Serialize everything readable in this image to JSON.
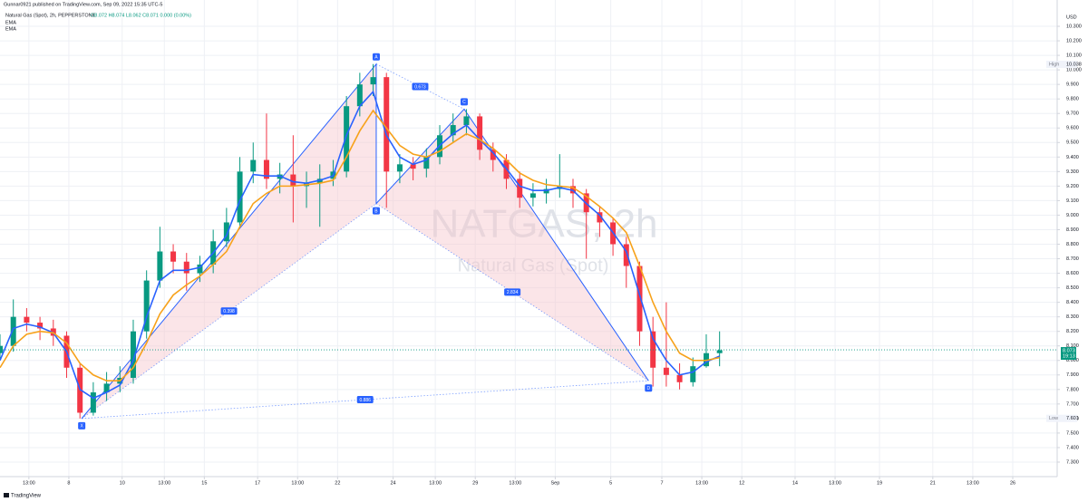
{
  "chart_data": {
    "type": "candlestick",
    "attribution": "Gunnar0921 published on TradingView.com, Sep 09, 2022 15:35 UTC-5",
    "title": "Natural Gas (Spot), 2h, PEPPERSTONE",
    "ohlc_legend": "O8.072 H8.074 L8.062 C8.071 0.000 (0.00%)",
    "watermark": "NATGAS, 2h",
    "watermark_subtitle": "Natural Gas (Spot)",
    "currency": "USD",
    "footer": "TradingView",
    "grid": true,
    "up_color": "#089981",
    "down_color": "#f23645",
    "xlim": [
      0,
      238
    ],
    "ylim": [
      7.2,
      10.4
    ],
    "x": [
      0,
      3,
      6,
      9,
      12,
      15,
      18,
      21,
      24,
      27,
      30,
      33,
      36,
      39,
      42,
      45,
      48,
      51,
      54,
      57,
      60,
      63,
      66,
      69,
      72,
      75,
      78,
      81,
      84,
      87,
      90,
      93,
      96,
      99,
      102,
      105,
      108,
      111,
      114,
      117,
      120,
      123,
      126,
      129,
      132,
      135,
      138,
      141,
      144,
      147,
      150,
      153,
      156,
      159,
      162
    ],
    "open": [
      8.05,
      8.1,
      8.3,
      8.26,
      8.22,
      8.17,
      7.95,
      7.64,
      7.78,
      7.84,
      7.88,
      8.2,
      8.55,
      8.75,
      8.68,
      8.6,
      8.66,
      8.82,
      8.95,
      9.3,
      9.38,
      9.25,
      9.28,
      9.2,
      9.22,
      9.25,
      9.3,
      9.75,
      9.9,
      9.95,
      9.3,
      9.35,
      9.32,
      9.4,
      9.55,
      9.62,
      9.68,
      9.45,
      9.38,
      9.25,
      9.12,
      9.15,
      9.18,
      9.2,
      9.15,
      9.02,
      8.95,
      8.8,
      8.65,
      8.2,
      7.95,
      7.9,
      7.85,
      7.96,
      8.05
    ],
    "high": [
      8.18,
      8.42,
      8.36,
      8.3,
      8.28,
      8.2,
      7.98,
      7.85,
      7.92,
      7.96,
      8.28,
      8.62,
      8.92,
      8.8,
      8.74,
      8.72,
      8.9,
      9.05,
      9.4,
      9.5,
      9.7,
      9.36,
      9.55,
      9.3,
      9.35,
      9.38,
      9.82,
      9.98,
      10.04,
      9.98,
      9.42,
      9.4,
      9.46,
      9.62,
      9.7,
      9.73,
      9.7,
      9.5,
      9.42,
      9.3,
      9.22,
      9.25,
      9.42,
      9.25,
      9.18,
      9.06,
      8.98,
      8.85,
      8.68,
      8.3,
      8.4,
      7.98,
      8.02,
      8.18,
      8.2
    ],
    "low": [
      8.0,
      8.06,
      8.2,
      8.14,
      8.1,
      7.88,
      7.6,
      7.62,
      7.72,
      7.78,
      7.84,
      8.15,
      8.5,
      8.6,
      8.48,
      8.54,
      8.6,
      8.78,
      8.92,
      9.22,
      9.18,
      9.15,
      8.95,
      9.05,
      8.92,
      9.2,
      9.26,
      9.68,
      9.82,
      9.05,
      9.22,
      9.24,
      9.26,
      9.35,
      9.5,
      9.55,
      9.38,
      9.3,
      9.18,
      9.05,
      9.06,
      9.08,
      9.12,
      9.05,
      8.7,
      8.85,
      8.72,
      8.5,
      8.1,
      7.82,
      7.82,
      7.8,
      7.82,
      7.95,
      7.96
    ],
    "close": [
      8.1,
      8.3,
      8.26,
      8.22,
      8.17,
      7.95,
      7.64,
      7.78,
      7.84,
      7.88,
      8.2,
      8.55,
      8.75,
      8.68,
      8.6,
      8.66,
      8.82,
      8.95,
      9.3,
      9.38,
      9.25,
      9.28,
      9.2,
      9.22,
      9.25,
      9.3,
      9.75,
      9.9,
      9.95,
      9.3,
      9.35,
      9.32,
      9.4,
      9.55,
      9.62,
      9.68,
      9.45,
      9.38,
      9.25,
      9.12,
      9.15,
      9.18,
      9.2,
      9.15,
      9.02,
      8.95,
      8.8,
      8.65,
      8.2,
      7.95,
      7.9,
      7.85,
      7.96,
      8.05,
      8.07
    ],
    "series": [
      {
        "name": "EMA",
        "color": "#2962ff",
        "values": [
          8.0,
          8.22,
          8.25,
          8.23,
          8.19,
          8.06,
          7.8,
          7.74,
          7.78,
          7.83,
          8.0,
          8.3,
          8.55,
          8.62,
          8.62,
          8.64,
          8.74,
          8.86,
          9.1,
          9.28,
          9.27,
          9.27,
          9.23,
          9.22,
          9.24,
          9.27,
          9.55,
          9.75,
          9.85,
          9.55,
          9.4,
          9.35,
          9.38,
          9.48,
          9.56,
          9.62,
          9.52,
          9.43,
          9.32,
          9.2,
          9.17,
          9.17,
          9.19,
          9.17,
          9.08,
          9.0,
          8.88,
          8.75,
          8.45,
          8.15,
          8.0,
          7.9,
          7.92,
          7.99,
          8.03
        ]
      },
      {
        "name": "EMA",
        "color": "#f7a21b",
        "values": [
          7.95,
          8.1,
          8.18,
          8.2,
          8.19,
          8.12,
          7.98,
          7.9,
          7.86,
          7.86,
          7.95,
          8.12,
          8.32,
          8.45,
          8.52,
          8.58,
          8.66,
          8.75,
          8.92,
          9.08,
          9.15,
          9.2,
          9.2,
          9.21,
          9.22,
          9.24,
          9.4,
          9.58,
          9.72,
          9.6,
          9.48,
          9.42,
          9.4,
          9.44,
          9.5,
          9.56,
          9.52,
          9.46,
          9.38,
          9.29,
          9.24,
          9.21,
          9.2,
          9.19,
          9.13,
          9.06,
          8.98,
          8.88,
          8.65,
          8.4,
          8.2,
          8.05,
          8.0,
          8.0,
          8.02
        ]
      }
    ],
    "pattern": {
      "color": "#2962ff",
      "points": [
        {
          "name": "X",
          "x": 18.4,
          "y": 7.6
        },
        {
          "name": "A",
          "x": 84.7,
          "y": 10.04
        },
        {
          "name": "B",
          "x": 84.7,
          "y": 9.08
        },
        {
          "name": "C",
          "x": 104.5,
          "y": 9.73
        },
        {
          "name": "D",
          "x": 146,
          "y": 7.86
        }
      ],
      "ratios": {
        "XB": 0.398,
        "AC": 0.673,
        "BD": 2.834,
        "XD": 0.886
      }
    },
    "high_marker": {
      "label": "High",
      "value": 10.038
    },
    "low_marker": {
      "label": "Low",
      "value": 7.601
    },
    "last_price": {
      "value": 8.073,
      "countdown": "19:13"
    },
    "xticks": [
      {
        "value": 6.5,
        "label": "13:00"
      },
      {
        "value": 15.5,
        "label": "8"
      },
      {
        "value": 27.5,
        "label": "10"
      },
      {
        "value": 37,
        "label": "13:00"
      },
      {
        "value": 46,
        "label": "15"
      },
      {
        "value": 58,
        "label": "17"
      },
      {
        "value": 67,
        "label": "13:00"
      },
      {
        "value": 76,
        "label": "22"
      },
      {
        "value": 88.5,
        "label": "24"
      },
      {
        "value": 98,
        "label": "13:00"
      },
      {
        "value": 107,
        "label": "29"
      },
      {
        "value": 116,
        "label": "13:00"
      },
      {
        "value": 125,
        "label": "Sep"
      },
      {
        "value": 137.5,
        "label": "5"
      },
      {
        "value": 149,
        "label": "7"
      },
      {
        "value": 158,
        "label": "13:00"
      },
      {
        "value": 167,
        "label": "12"
      },
      {
        "value": 179,
        "label": "14"
      },
      {
        "value": 188,
        "label": "13:00"
      },
      {
        "value": 198,
        "label": "19"
      },
      {
        "value": 210,
        "label": "21"
      },
      {
        "value": 219,
        "label": "13:00"
      },
      {
        "value": 228,
        "label": "26"
      }
    ],
    "yticks": [
      {
        "value": 7.3,
        "label": "7.300"
      },
      {
        "value": 7.4,
        "label": "7.400"
      },
      {
        "value": 7.5,
        "label": "7.500"
      },
      {
        "value": 7.6,
        "label": "7.600"
      },
      {
        "value": 7.7,
        "label": "7.700"
      },
      {
        "value": 7.8,
        "label": "7.800"
      },
      {
        "value": 7.9,
        "label": "7.900"
      },
      {
        "value": 8.0,
        "label": "8.000"
      },
      {
        "value": 8.1,
        "label": "8.100"
      },
      {
        "value": 8.2,
        "label": "8.200"
      },
      {
        "value": 8.3,
        "label": "8.300"
      },
      {
        "value": 8.4,
        "label": "8.400"
      },
      {
        "value": 8.5,
        "label": "8.500"
      },
      {
        "value": 8.6,
        "label": "8.600"
      },
      {
        "value": 8.7,
        "label": "8.700"
      },
      {
        "value": 8.8,
        "label": "8.800"
      },
      {
        "value": 8.9,
        "label": "8.900"
      },
      {
        "value": 9.0,
        "label": "9.000"
      },
      {
        "value": 9.1,
        "label": "9.100"
      },
      {
        "value": 9.2,
        "label": "9.200"
      },
      {
        "value": 9.3,
        "label": "9.300"
      },
      {
        "value": 9.4,
        "label": "9.400"
      },
      {
        "value": 9.5,
        "label": "9.500"
      },
      {
        "value": 9.6,
        "label": "9.600"
      },
      {
        "value": 9.7,
        "label": "9.700"
      },
      {
        "value": 9.8,
        "label": "9.800"
      },
      {
        "value": 9.9,
        "label": "9.900"
      },
      {
        "value": 10.0,
        "label": "10.000"
      },
      {
        "value": 10.1,
        "label": "10.100"
      },
      {
        "value": 10.2,
        "label": "10.200"
      },
      {
        "value": 10.3,
        "label": "10.300"
      }
    ]
  }
}
